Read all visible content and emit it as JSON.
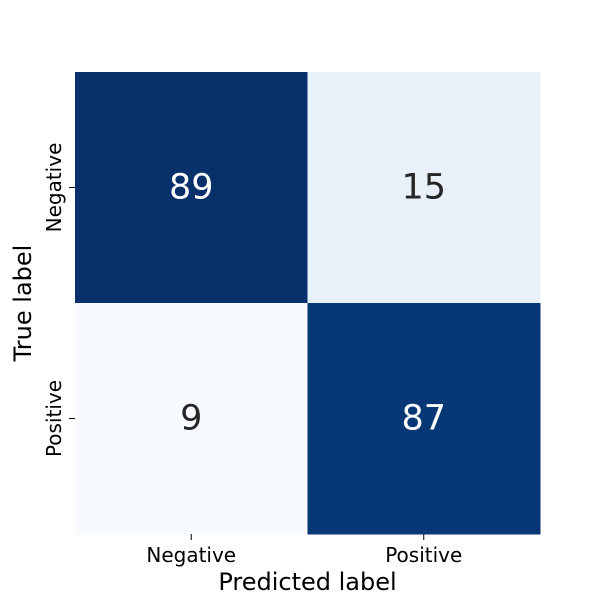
{
  "chart_data": {
    "type": "heatmap",
    "title": "",
    "xlabel": "Predicted label",
    "ylabel": "True label",
    "x_categories": [
      "Negative",
      "Positive"
    ],
    "y_categories": [
      "Negative",
      "Positive"
    ],
    "values": [
      [
        89,
        15
      ],
      [
        9,
        87
      ]
    ],
    "colormap": "Blues",
    "color_min": "#f7fbff",
    "color_max": "#08306b",
    "dark_text_color": "#262626",
    "light_text_color": "#ffffff",
    "colorbar": false
  }
}
